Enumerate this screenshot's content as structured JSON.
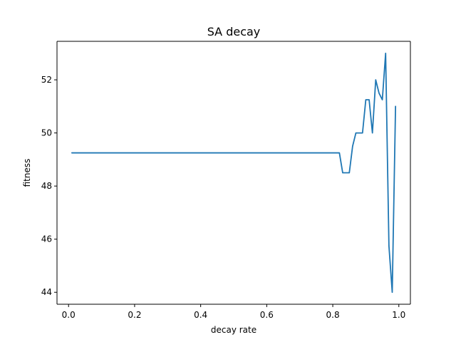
{
  "chart_data": {
    "type": "line",
    "title": "SA decay",
    "xlabel": "decay rate",
    "ylabel": "fitness",
    "xlim": [
      -0.035,
      1.035
    ],
    "ylim": [
      43.55,
      53.45
    ],
    "x_ticks": [
      0.0,
      0.2,
      0.4,
      0.6,
      0.8,
      1.0
    ],
    "x_tick_labels": [
      "0.0",
      "0.2",
      "0.4",
      "0.6",
      "0.8",
      "1.0"
    ],
    "y_ticks": [
      44,
      46,
      48,
      50,
      52
    ],
    "y_tick_labels": [
      "44",
      "46",
      "48",
      "50",
      "52"
    ],
    "grid": false,
    "legend": "none",
    "series": [
      {
        "color": "#1f77b4",
        "x": [
          0.01,
          0.82,
          0.83,
          0.85,
          0.86,
          0.87,
          0.88,
          0.89,
          0.9,
          0.91,
          0.92,
          0.93,
          0.94,
          0.95,
          0.96,
          0.97,
          0.98,
          0.99
        ],
        "y": [
          49.25,
          49.25,
          48.5,
          48.5,
          49.5,
          50.0,
          50.0,
          50.0,
          51.25,
          51.25,
          50.0,
          52.0,
          51.5,
          51.25,
          53.0,
          45.75,
          44.0,
          51.0
        ]
      }
    ]
  }
}
